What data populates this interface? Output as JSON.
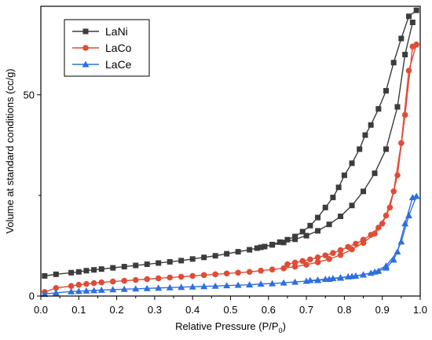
{
  "chart_data": {
    "type": "line",
    "xlabel_main": "Relative Pressure (P/P",
    "xlabel_sub": "0",
    "xlabel_end": ")",
    "ylabel": "Volume at standard conditions (cc/g)",
    "xlim": [
      0.0,
      1.0
    ],
    "ylim": [
      0,
      72
    ],
    "x_ticks": [
      0.0,
      0.1,
      0.2,
      0.3,
      0.4,
      0.5,
      0.6,
      0.7,
      0.8,
      0.9,
      1.0
    ],
    "x_tick_labels": [
      "0.0",
      "0.1",
      "0.2",
      "0.3",
      "0.4",
      "0.5",
      "0.6",
      "0.7",
      "0.8",
      "0.9",
      "1.0"
    ],
    "y_ticks": [
      0,
      50
    ],
    "y_tick_labels": [
      "0",
      "50"
    ],
    "legend_position": "top-left",
    "series": [
      {
        "name": "LaNi",
        "color": "#3c3c3c",
        "marker": "square",
        "adsorption": {
          "x": [
            0.01,
            0.04,
            0.08,
            0.1,
            0.12,
            0.14,
            0.16,
            0.19,
            0.22,
            0.25,
            0.28,
            0.31,
            0.34,
            0.37,
            0.4,
            0.43,
            0.46,
            0.49,
            0.52,
            0.55,
            0.58,
            0.61,
            0.64,
            0.67,
            0.7,
            0.73,
            0.76,
            0.79,
            0.82,
            0.85,
            0.88,
            0.91,
            0.94,
            0.96,
            0.98
          ],
          "y": [
            5.0,
            5.4,
            5.8,
            6.0,
            6.3,
            6.5,
            6.7,
            7.0,
            7.3,
            7.6,
            7.9,
            8.2,
            8.5,
            8.8,
            9.2,
            9.6,
            10.0,
            10.5,
            11.0,
            11.5,
            12.1,
            12.7,
            13.3,
            14.1,
            15.0,
            16.2,
            17.8,
            19.8,
            22.5,
            26.0,
            30.5,
            36.5,
            47.0,
            60.0,
            68.0
          ]
        },
        "desorption": {
          "x": [
            0.99,
            0.97,
            0.95,
            0.93,
            0.91,
            0.89,
            0.87,
            0.855,
            0.84,
            0.82,
            0.8,
            0.785,
            0.77,
            0.75,
            0.73,
            0.71,
            0.69,
            0.67,
            0.65,
            0.63,
            0.61,
            0.59,
            0.57
          ],
          "y": [
            71.0,
            69.5,
            64.0,
            58.0,
            51.0,
            46.5,
            42.5,
            40.0,
            36.5,
            33.0,
            30.0,
            27.0,
            24.5,
            22.0,
            19.5,
            17.5,
            16.0,
            14.8,
            14.0,
            13.4,
            12.8,
            12.3,
            11.9
          ]
        }
      },
      {
        "name": "LaCo",
        "color": "#e04c35",
        "marker": "circle",
        "adsorption": {
          "x": [
            0.01,
            0.04,
            0.08,
            0.1,
            0.12,
            0.14,
            0.16,
            0.19,
            0.22,
            0.25,
            0.28,
            0.31,
            0.34,
            0.37,
            0.4,
            0.43,
            0.46,
            0.49,
            0.52,
            0.55,
            0.58,
            0.61,
            0.64,
            0.67,
            0.7,
            0.73,
            0.76,
            0.79,
            0.82,
            0.85,
            0.88,
            0.9,
            0.92,
            0.94,
            0.96,
            0.98
          ],
          "y": [
            1.0,
            2.0,
            2.5,
            2.8,
            3.0,
            3.2,
            3.4,
            3.6,
            3.8,
            4.0,
            4.2,
            4.4,
            4.6,
            4.8,
            5.0,
            5.2,
            5.4,
            5.6,
            5.8,
            6.0,
            6.3,
            6.6,
            6.9,
            7.3,
            7.8,
            8.4,
            9.2,
            10.2,
            11.6,
            13.2,
            15.5,
            18.0,
            22.0,
            30.0,
            45.0,
            62.0
          ]
        },
        "desorption": {
          "x": [
            0.99,
            0.97,
            0.95,
            0.93,
            0.91,
            0.89,
            0.87,
            0.85,
            0.83,
            0.81,
            0.79,
            0.77,
            0.75,
            0.73,
            0.71,
            0.69,
            0.67,
            0.65
          ],
          "y": [
            62.5,
            56.0,
            38.0,
            26.0,
            20.0,
            17.0,
            15.2,
            14.0,
            13.0,
            12.2,
            11.4,
            10.7,
            10.1,
            9.6,
            9.1,
            8.7,
            8.3,
            7.9
          ]
        }
      },
      {
        "name": "LaCe",
        "color": "#2e6fe0",
        "marker": "triangle",
        "adsorption": {
          "x": [
            0.01,
            0.04,
            0.08,
            0.1,
            0.12,
            0.14,
            0.16,
            0.19,
            0.22,
            0.25,
            0.28,
            0.31,
            0.34,
            0.37,
            0.4,
            0.43,
            0.46,
            0.49,
            0.52,
            0.55,
            0.58,
            0.61,
            0.64,
            0.67,
            0.7,
            0.73,
            0.76,
            0.79,
            0.82,
            0.85,
            0.88,
            0.91,
            0.94,
            0.96,
            0.98
          ],
          "y": [
            0.5,
            0.8,
            1.1,
            1.2,
            1.3,
            1.4,
            1.5,
            1.6,
            1.7,
            1.8,
            1.9,
            2.0,
            2.1,
            2.2,
            2.3,
            2.4,
            2.5,
            2.6,
            2.7,
            2.8,
            3.0,
            3.1,
            3.3,
            3.5,
            3.7,
            3.9,
            4.2,
            4.5,
            4.9,
            5.3,
            6.0,
            7.5,
            11.0,
            18.0,
            24.5
          ]
        },
        "desorption": {
          "x": [
            0.99,
            0.97,
            0.95,
            0.93,
            0.91,
            0.89,
            0.87,
            0.85,
            0.83,
            0.81,
            0.79,
            0.77,
            0.75,
            0.73,
            0.71
          ],
          "y": [
            24.8,
            20.0,
            13.5,
            9.0,
            7.0,
            6.2,
            5.7,
            5.3,
            5.0,
            4.8,
            4.6,
            4.4,
            4.2,
            4.0,
            3.9
          ]
        }
      }
    ]
  }
}
